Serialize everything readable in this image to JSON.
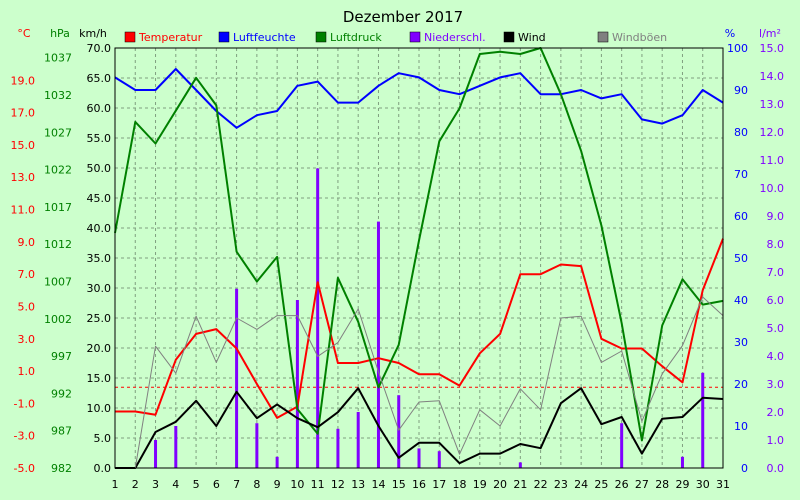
{
  "chart_data": {
    "type": "line",
    "title": "Dezember 2017",
    "x": [
      1,
      2,
      3,
      4,
      5,
      6,
      7,
      8,
      9,
      10,
      11,
      12,
      13,
      14,
      15,
      16,
      17,
      18,
      19,
      20,
      21,
      22,
      23,
      24,
      25,
      26,
      27,
      28,
      29,
      30,
      31
    ],
    "axes": {
      "temperature": {
        "unit": "°C",
        "range": [
          -5,
          21
        ],
        "ticks": [
          -5.0,
          -3.0,
          -1.0,
          1.0,
          3.0,
          5.0,
          7.0,
          9.0,
          11.0,
          13.0,
          15.0,
          17.0,
          19.0
        ]
      },
      "pressure": {
        "unit": "hPa",
        "range": [
          982,
          1038.3
        ],
        "ticks": [
          982,
          987,
          992,
          997,
          1002,
          1007,
          1012,
          1017,
          1022,
          1027,
          1032,
          1037
        ]
      },
      "wind": {
        "unit": "km/h",
        "range": [
          0,
          70
        ],
        "ticks": [
          "0.0",
          "5.0",
          "10.0",
          "15.0",
          "20.0",
          "25.0",
          "30.0",
          "35.0",
          "40.0",
          "45.0",
          "50.0",
          "55.0",
          "60.0",
          "65.0",
          "70.0"
        ]
      },
      "humidity": {
        "unit": "%",
        "range": [
          0,
          100
        ],
        "ticks": [
          0,
          10,
          20,
          30,
          40,
          50,
          60,
          70,
          80,
          90,
          100
        ]
      },
      "precipitation": {
        "unit": "l/m²",
        "range": [
          0,
          15
        ],
        "ticks": [
          "0.0",
          "1.0",
          "2.0",
          "3.0",
          "4.0",
          "5.0",
          "6.0",
          "7.0",
          "8.0",
          "9.0",
          "10.0",
          "11.0",
          "12.0",
          "13.0",
          "14.0",
          "15.0"
        ]
      }
    },
    "series": [
      {
        "name": "Temperatur",
        "axis": "temperature",
        "color": "#ff0000",
        "values": [
          -1.5,
          -1.5,
          -1.7,
          1.7,
          3.3,
          3.6,
          2.4,
          0.2,
          -1.9,
          -1.2,
          6.5,
          1.5,
          1.5,
          1.8,
          1.5,
          0.8,
          0.8,
          0.1,
          2.1,
          3.3,
          7.0,
          7.0,
          7.6,
          7.5,
          3.0,
          2.4,
          2.4,
          1.3,
          0.3,
          6.0,
          9.2
        ]
      },
      {
        "name": "Luftfeuchte",
        "axis": "humidity",
        "color": "#0000ff",
        "values": [
          93,
          90,
          90,
          95,
          90,
          85,
          81,
          84,
          85,
          91,
          92,
          87,
          87,
          91,
          94,
          93,
          90,
          89,
          91,
          93,
          94,
          89,
          89,
          90,
          88,
          89,
          83,
          82,
          84,
          90,
          87
        ]
      },
      {
        "name": "Luftdruck",
        "axis": "pressure",
        "color": "#008000",
        "values": [
          1013.5,
          1028.4,
          1025.5,
          1029.9,
          1034.3,
          1030.6,
          1011.0,
          1007.0,
          1010.3,
          989.9,
          986.6,
          1007.5,
          1001.6,
          992.8,
          998.5,
          1012.5,
          1025.8,
          1030.2,
          1037.5,
          1037.8,
          1037.5,
          1038.3,
          1032.1,
          1024.5,
          1014.5,
          1001.4,
          985.7,
          1001.1,
          1007.3,
          1003.9,
          1004.4
        ]
      },
      {
        "name": "Niederschl.",
        "axis": "precipitation",
        "color": "#8000ff",
        "type": "bar",
        "values": [
          0,
          0,
          1.0,
          1.5,
          0,
          0,
          6.4,
          1.6,
          0.4,
          6.0,
          10.7,
          1.4,
          2.0,
          8.8,
          2.6,
          0.7,
          0.6,
          0,
          0,
          0,
          0.2,
          0,
          0,
          0,
          0,
          1.6,
          0,
          0,
          0.4,
          3.4,
          0
        ]
      },
      {
        "name": "Wind",
        "axis": "wind",
        "color": "#000000",
        "values": [
          0,
          0,
          6.0,
          7.7,
          11.2,
          7.0,
          12.7,
          8.3,
          10.6,
          8.3,
          6.8,
          9.3,
          13.3,
          7.0,
          1.7,
          4.2,
          4.2,
          0.8,
          2.4,
          2.4,
          4.0,
          3.3,
          10.8,
          13.3,
          7.3,
          8.5,
          2.4,
          8.2,
          8.5,
          11.7,
          11.5
        ]
      },
      {
        "name": "Windböen",
        "axis": "wind",
        "color": "#808080",
        "values": [
          0,
          0,
          20.3,
          15.8,
          25.3,
          17.6,
          25.0,
          23.1,
          25.4,
          25.4,
          18.6,
          20.9,
          26.5,
          16.0,
          6.3,
          11.0,
          11.2,
          2.3,
          9.7,
          7.0,
          13.2,
          9.7,
          25.0,
          25.3,
          17.6,
          19.5,
          7.8,
          15.7,
          20.4,
          28.5,
          25.4
        ]
      }
    ],
    "reference_line": {
      "axis": "temperature",
      "value": 0.0,
      "color": "#ff0000",
      "style": "dashed"
    },
    "legend_placement": "top"
  }
}
